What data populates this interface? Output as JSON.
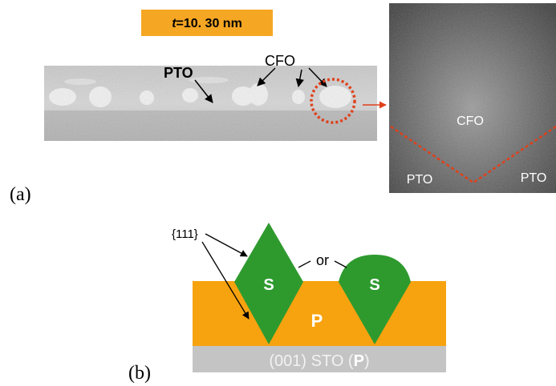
{
  "panel_a": {
    "label": "(a)",
    "thickness": {
      "symbol": "t",
      "text": "=10. 30 nm"
    },
    "strip_labels": [
      "PTO",
      "CFO"
    ],
    "inset_labels": {
      "top": "CFO",
      "left": "PTO",
      "right": "PTO"
    }
  },
  "panel_b": {
    "label": "(b)",
    "facet": "{111}",
    "or": "or",
    "islands": [
      "S",
      "S"
    ],
    "film": "P",
    "substrate": {
      "prefix": "(001) STO (",
      "bold": "P",
      "suffix": ")"
    }
  }
}
